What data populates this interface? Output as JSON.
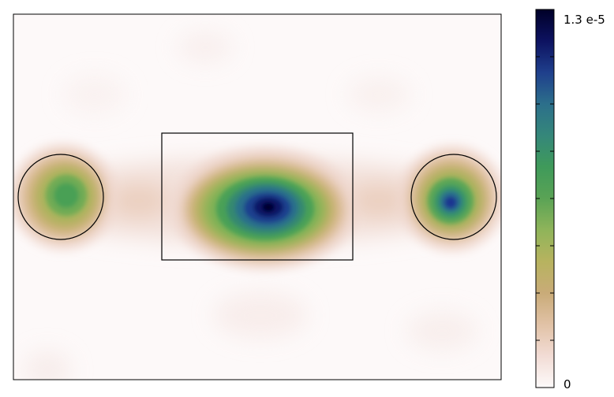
{
  "chart_data": {
    "type": "heatmap",
    "title": "",
    "xlabel": "",
    "ylabel": "",
    "colormap": "gist_earth_r",
    "grid": false,
    "colorbar": {
      "min": 0,
      "max": 1.3e-05,
      "min_label": "0",
      "max_label": "1.3 e-5",
      "minor_tick_count": 7,
      "colors": [
        "#fdfafa",
        "#f2dcd5",
        "#e1c2a6",
        "#c9ab78",
        "#b7b35f",
        "#8fb45a",
        "#5aa355",
        "#3f9a5a",
        "#35877a",
        "#2c6f8b",
        "#1f3f8c",
        "#0d1260",
        "#000028"
      ]
    },
    "peaks": [
      {
        "name": "left-circle-region",
        "value": 7.5e-06
      },
      {
        "name": "center-rectangle-region",
        "value": 1.3e-05
      },
      {
        "name": "right-circle-region",
        "value": 1.05e-05
      }
    ],
    "overlays": [
      {
        "shape": "circle",
        "region": "left"
      },
      {
        "shape": "rectangle",
        "region": "center"
      },
      {
        "shape": "circle",
        "region": "right"
      }
    ]
  }
}
